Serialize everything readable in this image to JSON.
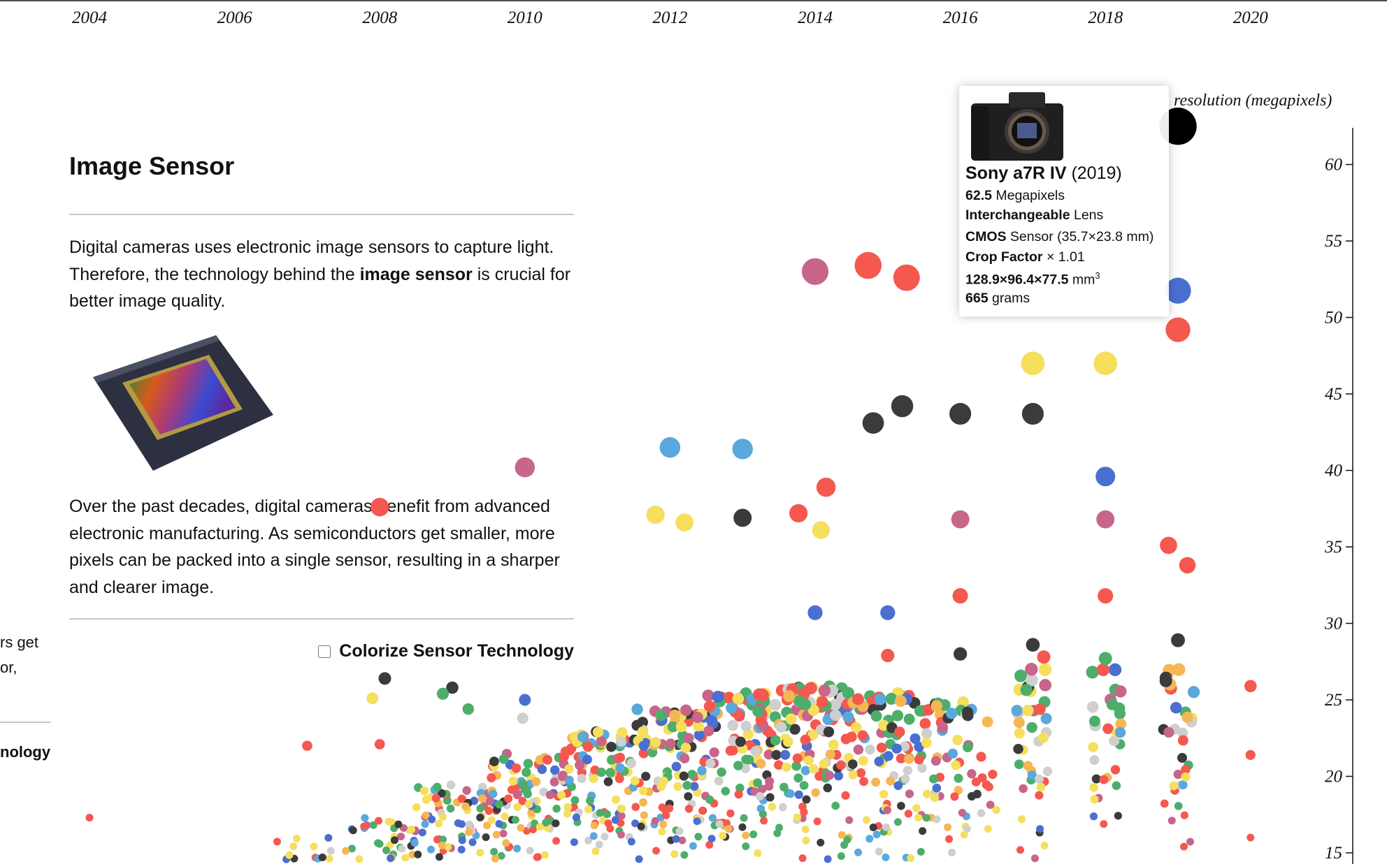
{
  "panel": {
    "title": "Image Sensor",
    "para1": [
      "Digital cameras uses electronic image sensors to capture light. Therefore, the technology behind the ",
      "image sensor",
      " is crucial for better image quality."
    ],
    "para2": "Over the past decades, digital cameras benefit from advanced electronic manufacturing. As semiconductors get smaller, more pixels can be packed into a single sensor, resulting in a sharper and clearer image.",
    "checkbox_label": "Colorize Sensor Technology",
    "checkbox_checked": false
  },
  "ghost_panel": {
    "line1": "rs get",
    "line2": "or,",
    "line3": "nology"
  },
  "tooltip": {
    "name": "Sony a7R IV",
    "year": "(2019)",
    "megapixels": "62.5",
    "megapixels_unit": "Megapixels",
    "lens_type": "Interchangeable",
    "lens_label": "Lens",
    "sensor_type": "CMOS",
    "sensor_label": "Sensor (35.7×23.8 mm)",
    "crop_label": "Crop Factor",
    "crop_value": "× 1.01",
    "dimensions": "128.9×96.4×77.5",
    "dimensions_unit": "mm",
    "dimensions_exp": "3",
    "weight": "665",
    "weight_unit": "grams"
  },
  "colors": {
    "red": "#f4584f",
    "yellow": "#f5df5c",
    "black": "#3b3b3b",
    "blue": "#4a6fd0",
    "lightblue": "#5aa8dc",
    "green": "#4dae6b",
    "pink": "#c7658a",
    "orange": "#f6b653",
    "gray": "#cfcfcf",
    "highlight": "#000000"
  },
  "chart_data": {
    "type": "scatter",
    "xlabel": "",
    "ylabel": "resolution (megapixels)",
    "x_ticks": [
      2004,
      2006,
      2008,
      2010,
      2012,
      2014,
      2016,
      2018,
      2020
    ],
    "y_ticks": [
      15,
      20,
      25,
      30,
      35,
      40,
      45,
      50,
      55,
      60
    ],
    "xlim": [
      2004,
      2020
    ],
    "ylim": [
      15,
      62.5
    ],
    "highlighted": {
      "year": 2019,
      "mp": 62.5,
      "color": "highlight",
      "label": "Sony a7R IV"
    },
    "points": [
      [
        2014.0,
        53.0,
        "pink"
      ],
      [
        2014.73,
        53.4,
        "red"
      ],
      [
        2015.26,
        52.6,
        "red"
      ],
      [
        2019.0,
        51.75,
        "blue"
      ],
      [
        2019.0,
        49.2,
        "red"
      ],
      [
        2017.0,
        47.0,
        "yellow"
      ],
      [
        2018.0,
        47.0,
        "yellow"
      ],
      [
        2014.8,
        43.1,
        "black"
      ],
      [
        2015.2,
        44.2,
        "black"
      ],
      [
        2016.0,
        43.7,
        "black"
      ],
      [
        2017.0,
        43.7,
        "black"
      ],
      [
        2012.0,
        41.5,
        "lightblue"
      ],
      [
        2013.0,
        41.4,
        "lightblue"
      ],
      [
        2018.0,
        39.6,
        "blue"
      ],
      [
        2010.0,
        40.2,
        "pink"
      ],
      [
        2014.15,
        38.9,
        "red"
      ],
      [
        2008.0,
        37.6,
        "red"
      ],
      [
        2011.8,
        37.1,
        "yellow"
      ],
      [
        2012.2,
        36.6,
        "yellow"
      ],
      [
        2013.0,
        36.9,
        "black"
      ],
      [
        2013.77,
        37.2,
        "red"
      ],
      [
        2014.08,
        36.1,
        "yellow"
      ],
      [
        2016.0,
        36.8,
        "pink"
      ],
      [
        2018.0,
        36.8,
        "pink"
      ],
      [
        2018.87,
        35.1,
        "red"
      ],
      [
        2019.13,
        33.8,
        "red"
      ],
      [
        2014.0,
        30.7,
        "blue"
      ],
      [
        2015.0,
        30.7,
        "blue"
      ],
      [
        2016.0,
        31.8,
        "red"
      ],
      [
        2018.0,
        31.8,
        "red"
      ],
      [
        2020.0,
        25.9,
        "red"
      ],
      [
        2020.0,
        21.4,
        "red"
      ],
      [
        2020.0,
        16.0,
        "red"
      ],
      [
        2004.0,
        17.3,
        "red"
      ],
      [
        2007.0,
        22.0,
        "red"
      ],
      [
        2008.07,
        26.4,
        "black"
      ],
      [
        2009.0,
        25.8,
        "black"
      ],
      [
        2007.9,
        25.1,
        "yellow"
      ],
      [
        2008.0,
        22.1,
        "red"
      ],
      [
        2010.0,
        25.0,
        "blue"
      ],
      [
        2009.97,
        23.8,
        "gray"
      ],
      [
        2008.87,
        25.4,
        "green"
      ],
      [
        2009.22,
        24.4,
        "green"
      ],
      [
        2016.0,
        28.0,
        "black"
      ],
      [
        2017.0,
        28.6,
        "black"
      ],
      [
        2019.0,
        28.9,
        "black"
      ],
      [
        2018.0,
        27.7,
        "green"
      ],
      [
        2015.0,
        27.9,
        "red"
      ],
      [
        2017.15,
        27.8,
        "red"
      ],
      [
        2016.98,
        27.0,
        "pink"
      ]
    ],
    "cloud": {
      "years": [
        2005,
        2006,
        2007,
        2008,
        2009,
        2010,
        2011,
        2012,
        2013,
        2014,
        2015,
        2016,
        2017,
        2018,
        2019
      ],
      "counts": [
        4,
        18,
        45,
        75,
        95,
        115,
        135,
        145,
        145,
        135,
        105,
        65,
        40,
        34,
        34
      ],
      "mp_min": [
        8,
        8,
        8,
        8,
        8,
        8,
        8,
        8,
        8,
        8,
        10,
        12,
        12,
        12,
        12
      ],
      "mp_max": [
        13,
        14,
        16,
        17.5,
        19.5,
        21.5,
        23,
        24.5,
        25.5,
        26,
        25.5,
        25,
        27,
        27,
        27
      ]
    }
  }
}
